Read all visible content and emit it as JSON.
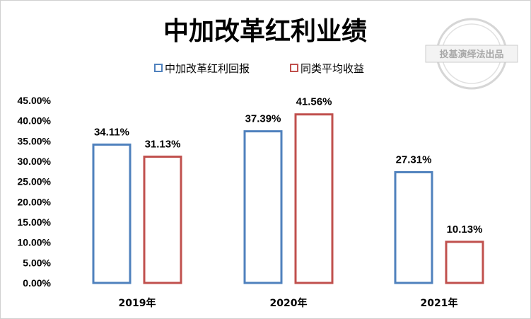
{
  "watermark": {
    "text": "投基演绎法出品"
  },
  "colors": {
    "series1": "#4F81BD",
    "series2": "#C0504D"
  },
  "chart_data": {
    "type": "bar",
    "title": "中加改革红利业绩",
    "categories": [
      "2019年",
      "2020年",
      "2021年"
    ],
    "series": [
      {
        "name": "中加改革红利回报",
        "values": [
          34.11,
          37.39,
          27.31
        ],
        "labels": [
          "34.11%",
          "37.39%",
          "27.31%"
        ]
      },
      {
        "name": "同类平均收益",
        "values": [
          31.13,
          41.56,
          10.13
        ],
        "labels": [
          "31.13%",
          "41.56%",
          "10.13%"
        ]
      }
    ],
    "yticks": [
      "0.00%",
      "5.00%",
      "10.00%",
      "15.00%",
      "20.00%",
      "25.00%",
      "30.00%",
      "35.00%",
      "40.00%",
      "45.00%"
    ],
    "ylim": [
      0,
      45
    ],
    "legend_position": "top",
    "grid": false
  }
}
